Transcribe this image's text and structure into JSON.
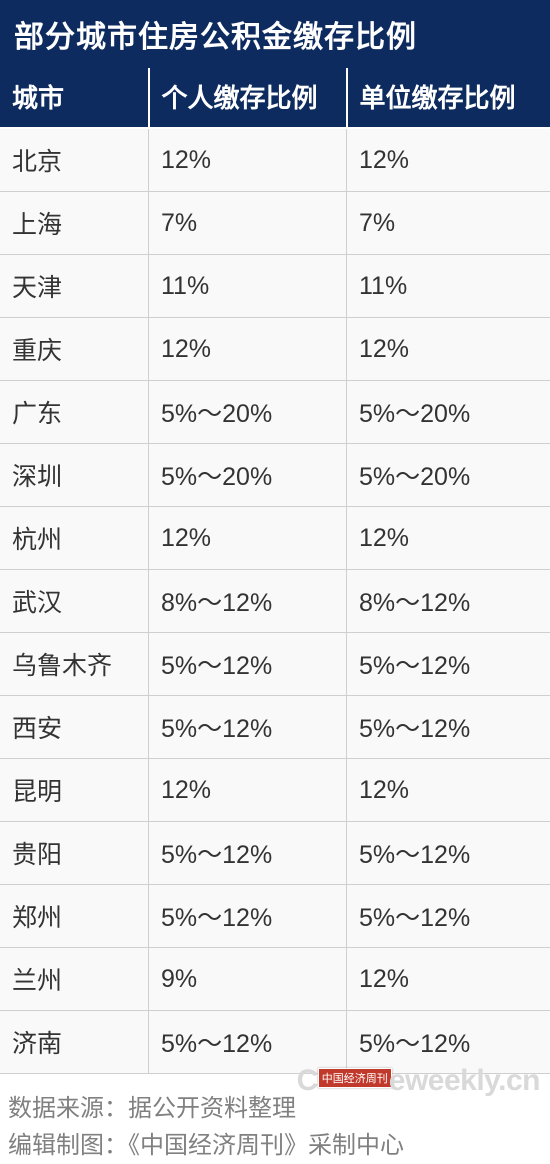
{
  "title": "部分城市住房公积金缴存比例",
  "table": {
    "columns": [
      "城市",
      "个人缴存比例",
      "单位缴存比例"
    ],
    "column_widths_pct": [
      27,
      36,
      37
    ],
    "header_bg": "#0d2b5e",
    "header_color": "#ffffff",
    "header_fontsize": 26,
    "cell_bg": "#f9f9f9",
    "cell_color": "#333333",
    "cell_fontsize": 25,
    "border_color": "#cfcfcf",
    "rows": [
      [
        "北京",
        "12%",
        "12%"
      ],
      [
        "上海",
        "7%",
        "7%"
      ],
      [
        "天津",
        "11%",
        "11%"
      ],
      [
        "重庆",
        "12%",
        "12%"
      ],
      [
        "广东",
        "5%～20%",
        "5%～20%"
      ],
      [
        "深圳",
        "5%～20%",
        "5%～20%"
      ],
      [
        "杭州",
        "12%",
        "12%"
      ],
      [
        "武汉",
        "8%～12%",
        "8%～12%"
      ],
      [
        "乌鲁木齐",
        "5%～12%",
        "5%～12%"
      ],
      [
        "西安",
        "5%～12%",
        "5%～12%"
      ],
      [
        "昆明",
        "12%",
        "12%"
      ],
      [
        "贵阳",
        "5%～12%",
        "5%～12%"
      ],
      [
        "郑州",
        "5%～12%",
        "5%～12%"
      ],
      [
        "兰州",
        "9%",
        "12%"
      ],
      [
        "济南",
        "5%～12%",
        "5%～12%"
      ]
    ]
  },
  "footer": {
    "line1": "数据来源：据公开资料整理",
    "line2": "编辑制图：《中国经济周刊》采制中心",
    "color": "#808080",
    "fontsize": 24
  },
  "watermark": {
    "tag": "中国经济周刊",
    "text1": "C",
    "text2": "eweekly",
    "text3": ".cn",
    "color": "#d9d9d9",
    "tag_bg": "#c0392b"
  },
  "title_style": {
    "bg": "#0d2b5e",
    "color": "#ffffff",
    "fontsize": 30
  }
}
